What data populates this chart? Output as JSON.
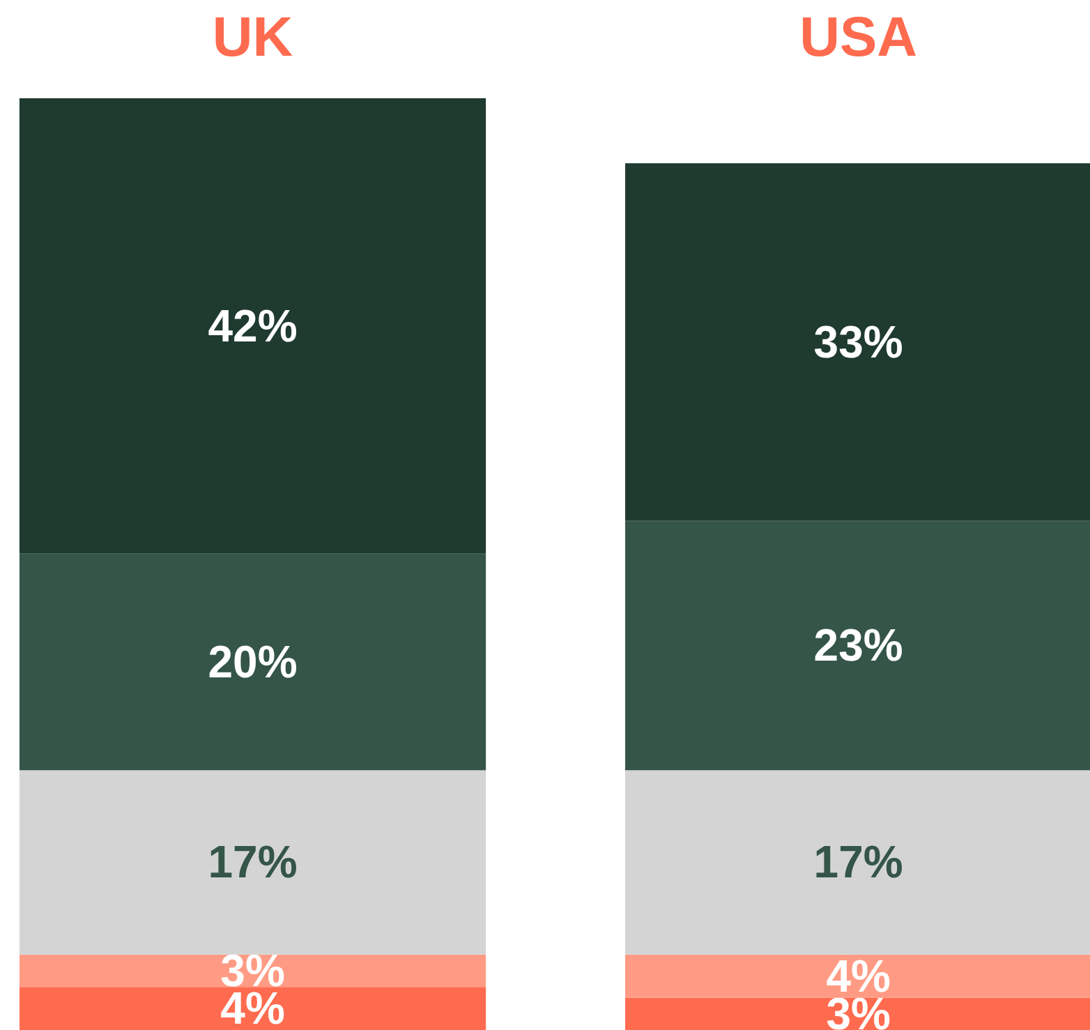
{
  "chart_data": {
    "type": "bar",
    "stacked": true,
    "categories": [
      "UK",
      "USA"
    ],
    "grid": false,
    "legend": false,
    "tick_labels": false,
    "series": [
      {
        "color": "#ff6b4f",
        "values": [
          4,
          3
        ],
        "value_labels": [
          "4%",
          "3%"
        ]
      },
      {
        "color": "#ff9b84",
        "values": [
          3,
          4
        ],
        "value_labels": [
          "3%",
          "4%"
        ]
      },
      {
        "color": "#d4d4d4",
        "values": [
          17,
          17
        ],
        "value_labels": [
          "17%",
          "17%"
        ]
      },
      {
        "color": "#345548",
        "values": [
          20,
          23
        ],
        "value_labels": [
          "20%",
          "23%"
        ]
      },
      {
        "color": "#1f3a2f",
        "values": [
          42,
          33
        ],
        "value_labels": [
          "42%",
          "33%"
        ]
      }
    ]
  }
}
